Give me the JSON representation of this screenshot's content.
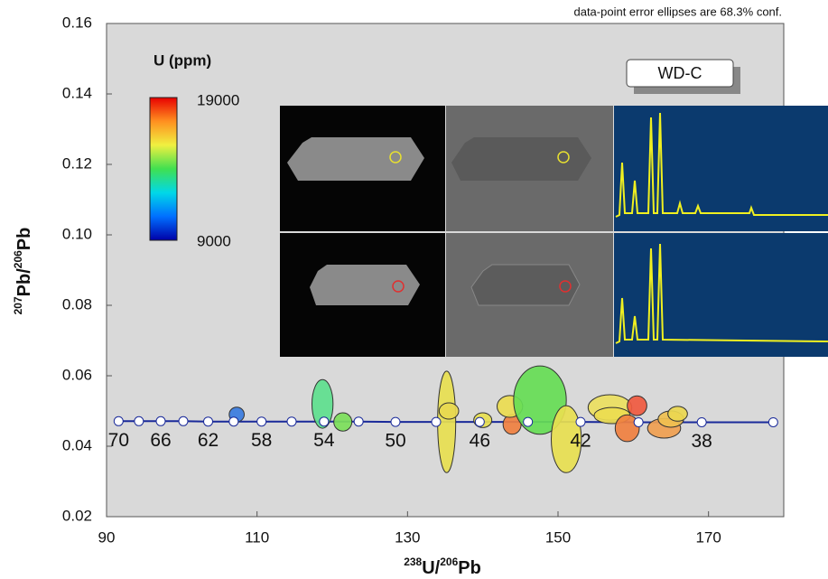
{
  "chart_data": {
    "type": "concordia-ellipses",
    "annotation": "data-point error ellipses are 68.3% conf.",
    "sample": "WD-C",
    "xlabel": [
      "238",
      "U/",
      "206",
      "Pb"
    ],
    "ylabel": [
      "207",
      "Pb/",
      "206",
      "Pb"
    ],
    "xlim": [
      90,
      180
    ],
    "ylim": [
      0.02,
      0.16
    ],
    "xticks": [
      90,
      110,
      130,
      150,
      170
    ],
    "yticks": [
      {
        "value": 0.02,
        "label": "0.02"
      },
      {
        "value": 0.04,
        "label": "0.04"
      },
      {
        "value": 0.06,
        "label": "0.06"
      },
      {
        "value": 0.08,
        "label": "0.08"
      },
      {
        "value": 0.1,
        "label": "0.10"
      },
      {
        "value": 0.12,
        "label": "0.12"
      },
      {
        "value": 0.14,
        "label": "0.14"
      },
      {
        "value": 0.16,
        "label": "0.16"
      }
    ],
    "concordia": {
      "color": "#1a2a9a",
      "labels": [
        70,
        null,
        66,
        null,
        62,
        null,
        58,
        null,
        54,
        null,
        50,
        null,
        46,
        null,
        42,
        null,
        38,
        null
      ],
      "x": [
        91.6,
        94.3,
        97.2,
        100.2,
        103.5,
        106.9,
        110.6,
        114.6,
        118.9,
        123.5,
        128.4,
        133.8,
        139.6,
        146.0,
        153.0,
        160.7,
        169.1,
        178.6
      ],
      "y": [
        0.0471,
        0.0471,
        0.0471,
        0.0471,
        0.047,
        0.047,
        0.047,
        0.047,
        0.047,
        0.047,
        0.0469,
        0.0469,
        0.0469,
        0.0469,
        0.0469,
        0.0468,
        0.0468,
        0.0468
      ]
    },
    "colorbar": {
      "title": "U (ppm)",
      "max": 19000,
      "min": 9000,
      "colors": [
        "#0000a8",
        "#0070ff",
        "#00d8e8",
        "#40e050",
        "#f0f040",
        "#ff9020",
        "#e80000"
      ]
    },
    "ellipses": {
      "x": [
        107.3,
        118.7,
        121.4,
        135.2,
        135.5,
        140.0,
        143.9,
        143.6,
        147.6,
        151.1,
        156.9,
        157.2,
        160.5,
        159.2,
        164.1,
        165.0,
        165.9
      ],
      "y": [
        0.049,
        0.052,
        0.0469,
        0.0469,
        0.05,
        0.0474,
        0.0462,
        0.0513,
        0.0531,
        0.042,
        0.051,
        0.0487,
        0.0515,
        0.0451,
        0.0451,
        0.0477,
        0.0492
      ],
      "x_err": [
        1.0,
        1.4,
        1.2,
        1.2,
        1.3,
        1.2,
        1.2,
        1.7,
        3.5,
        2.0,
        2.9,
        2.4,
        1.3,
        1.6,
        2.2,
        1.7,
        1.3
      ],
      "y_err": [
        0.0021,
        0.0069,
        0.0026,
        0.0144,
        0.0023,
        0.0021,
        0.0028,
        0.0031,
        0.0097,
        0.0095,
        0.0036,
        0.0023,
        0.0028,
        0.0038,
        0.0028,
        0.0023,
        0.0021
      ],
      "colors": [
        "#3a7ce0",
        "#5ee08e",
        "#7ce05a",
        "#e8e050",
        "#e8d850",
        "#e8e050",
        "#f08040",
        "#ecdc50",
        "#66dd55",
        "#e8e050",
        "#ece060",
        "#ecdc50",
        "#f05a40",
        "#f08040",
        "#f0a050",
        "#f0c050",
        "#ecd850"
      ]
    }
  }
}
